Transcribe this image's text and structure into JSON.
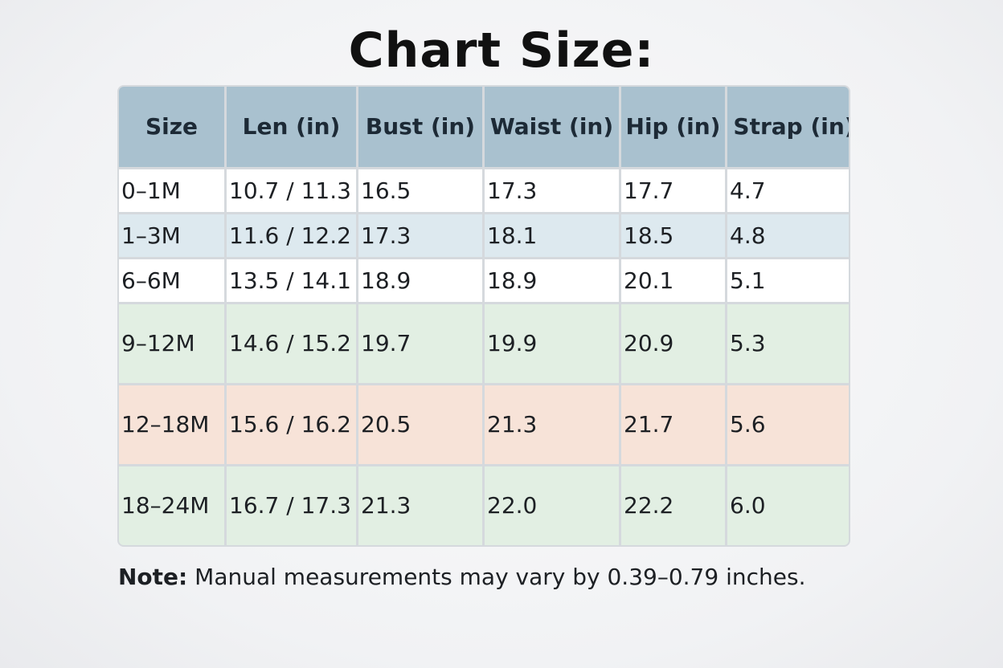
{
  "header": {
    "title": "Chart Size:"
  },
  "table": {
    "columns": [
      "Size",
      "Len (in)",
      "Bust (in)",
      "Waist (in)",
      "Hip (in)",
      "Strap (in)"
    ],
    "rows": [
      [
        "0–1M",
        "10.7 / 11.3",
        "16.5",
        "17.3",
        "17.7",
        "4.7"
      ],
      [
        "1–3M",
        "11.6 / 12.2",
        "17.3",
        "18.1",
        "18.5",
        "4.8"
      ],
      [
        "6–6M",
        "13.5 / 14.1",
        "18.9",
        "18.9",
        "20.1",
        "5.1"
      ],
      [
        "9–12M",
        "14.6 / 15.2",
        "19.7",
        "19.9",
        "20.9",
        "5.3"
      ],
      [
        "12–18M",
        "15.6 / 16.2",
        "20.5",
        "21.3",
        "21.7",
        "5.6"
      ],
      [
        "18–24M",
        "16.7 / 17.3",
        "21.3",
        "22.0",
        "22.2",
        "6.0"
      ]
    ]
  },
  "note": {
    "label": "Note:",
    "text": "Manual measurements may vary by 0.39–0.79 inches."
  }
}
